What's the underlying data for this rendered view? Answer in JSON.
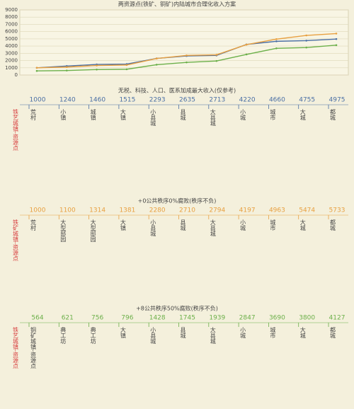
{
  "chart_data": {
    "type": "line",
    "title": "两资源点(铁矿、铜矿)内陆城市合理化收入方案",
    "categories": [
      null,
      null,
      null,
      null,
      null,
      null,
      null,
      null,
      null,
      null,
      null
    ],
    "series": [
      {
        "color": "#4a6fa5",
        "values": [
          1000,
          1240,
          1460,
          1515,
          2293,
          2635,
          2713,
          4220,
          4660,
          4755,
          4975
        ]
      },
      {
        "color": "#e8a040",
        "values": [
          1000,
          1100,
          1314,
          1381,
          2280,
          2710,
          2794,
          4197,
          4963,
          5474,
          5733
        ]
      },
      {
        "color": "#6cb04a",
        "values": [
          564,
          621,
          756,
          796,
          1428,
          1745,
          1939,
          2847,
          3690,
          3800,
          4127
        ]
      }
    ],
    "ylim": [
      0,
      9000
    ],
    "yticks": [
      0,
      1000,
      2000,
      3000,
      4000,
      5000,
      6000,
      7000,
      8000,
      9000
    ],
    "grid": true
  },
  "sections": [
    {
      "title": "无税、科技、人口、医系加成最大收入(仅参考)",
      "side_label": "铁艺城镇-资源点",
      "labels": [
        "荒村",
        "小镇",
        "城镇",
        "大镇",
        "小县城",
        "县城",
        "大县城",
        "小城",
        "城市",
        "大城",
        "都城"
      ]
    },
    {
      "title": "+0公共秩序0%腐败(秩序不负)",
      "side_label": "铁矿城镇-资源点",
      "labels": [
        "荒村",
        "大型邸园",
        "大型邸园",
        "大镇",
        "小县城",
        "县城",
        "大县城",
        "小城",
        "城市",
        "大城",
        "都城"
      ]
    },
    {
      "title": "+8公共秩序50%腐败(秩序不负)",
      "side_label": "铁艺城镇-资源点",
      "labels": [
        "铜矿城镇-资源点",
        "典工坊",
        "典工坊",
        "大镇",
        "小县城",
        "县城",
        "大县城",
        "小城",
        "城市",
        "大城",
        "都城"
      ]
    }
  ]
}
